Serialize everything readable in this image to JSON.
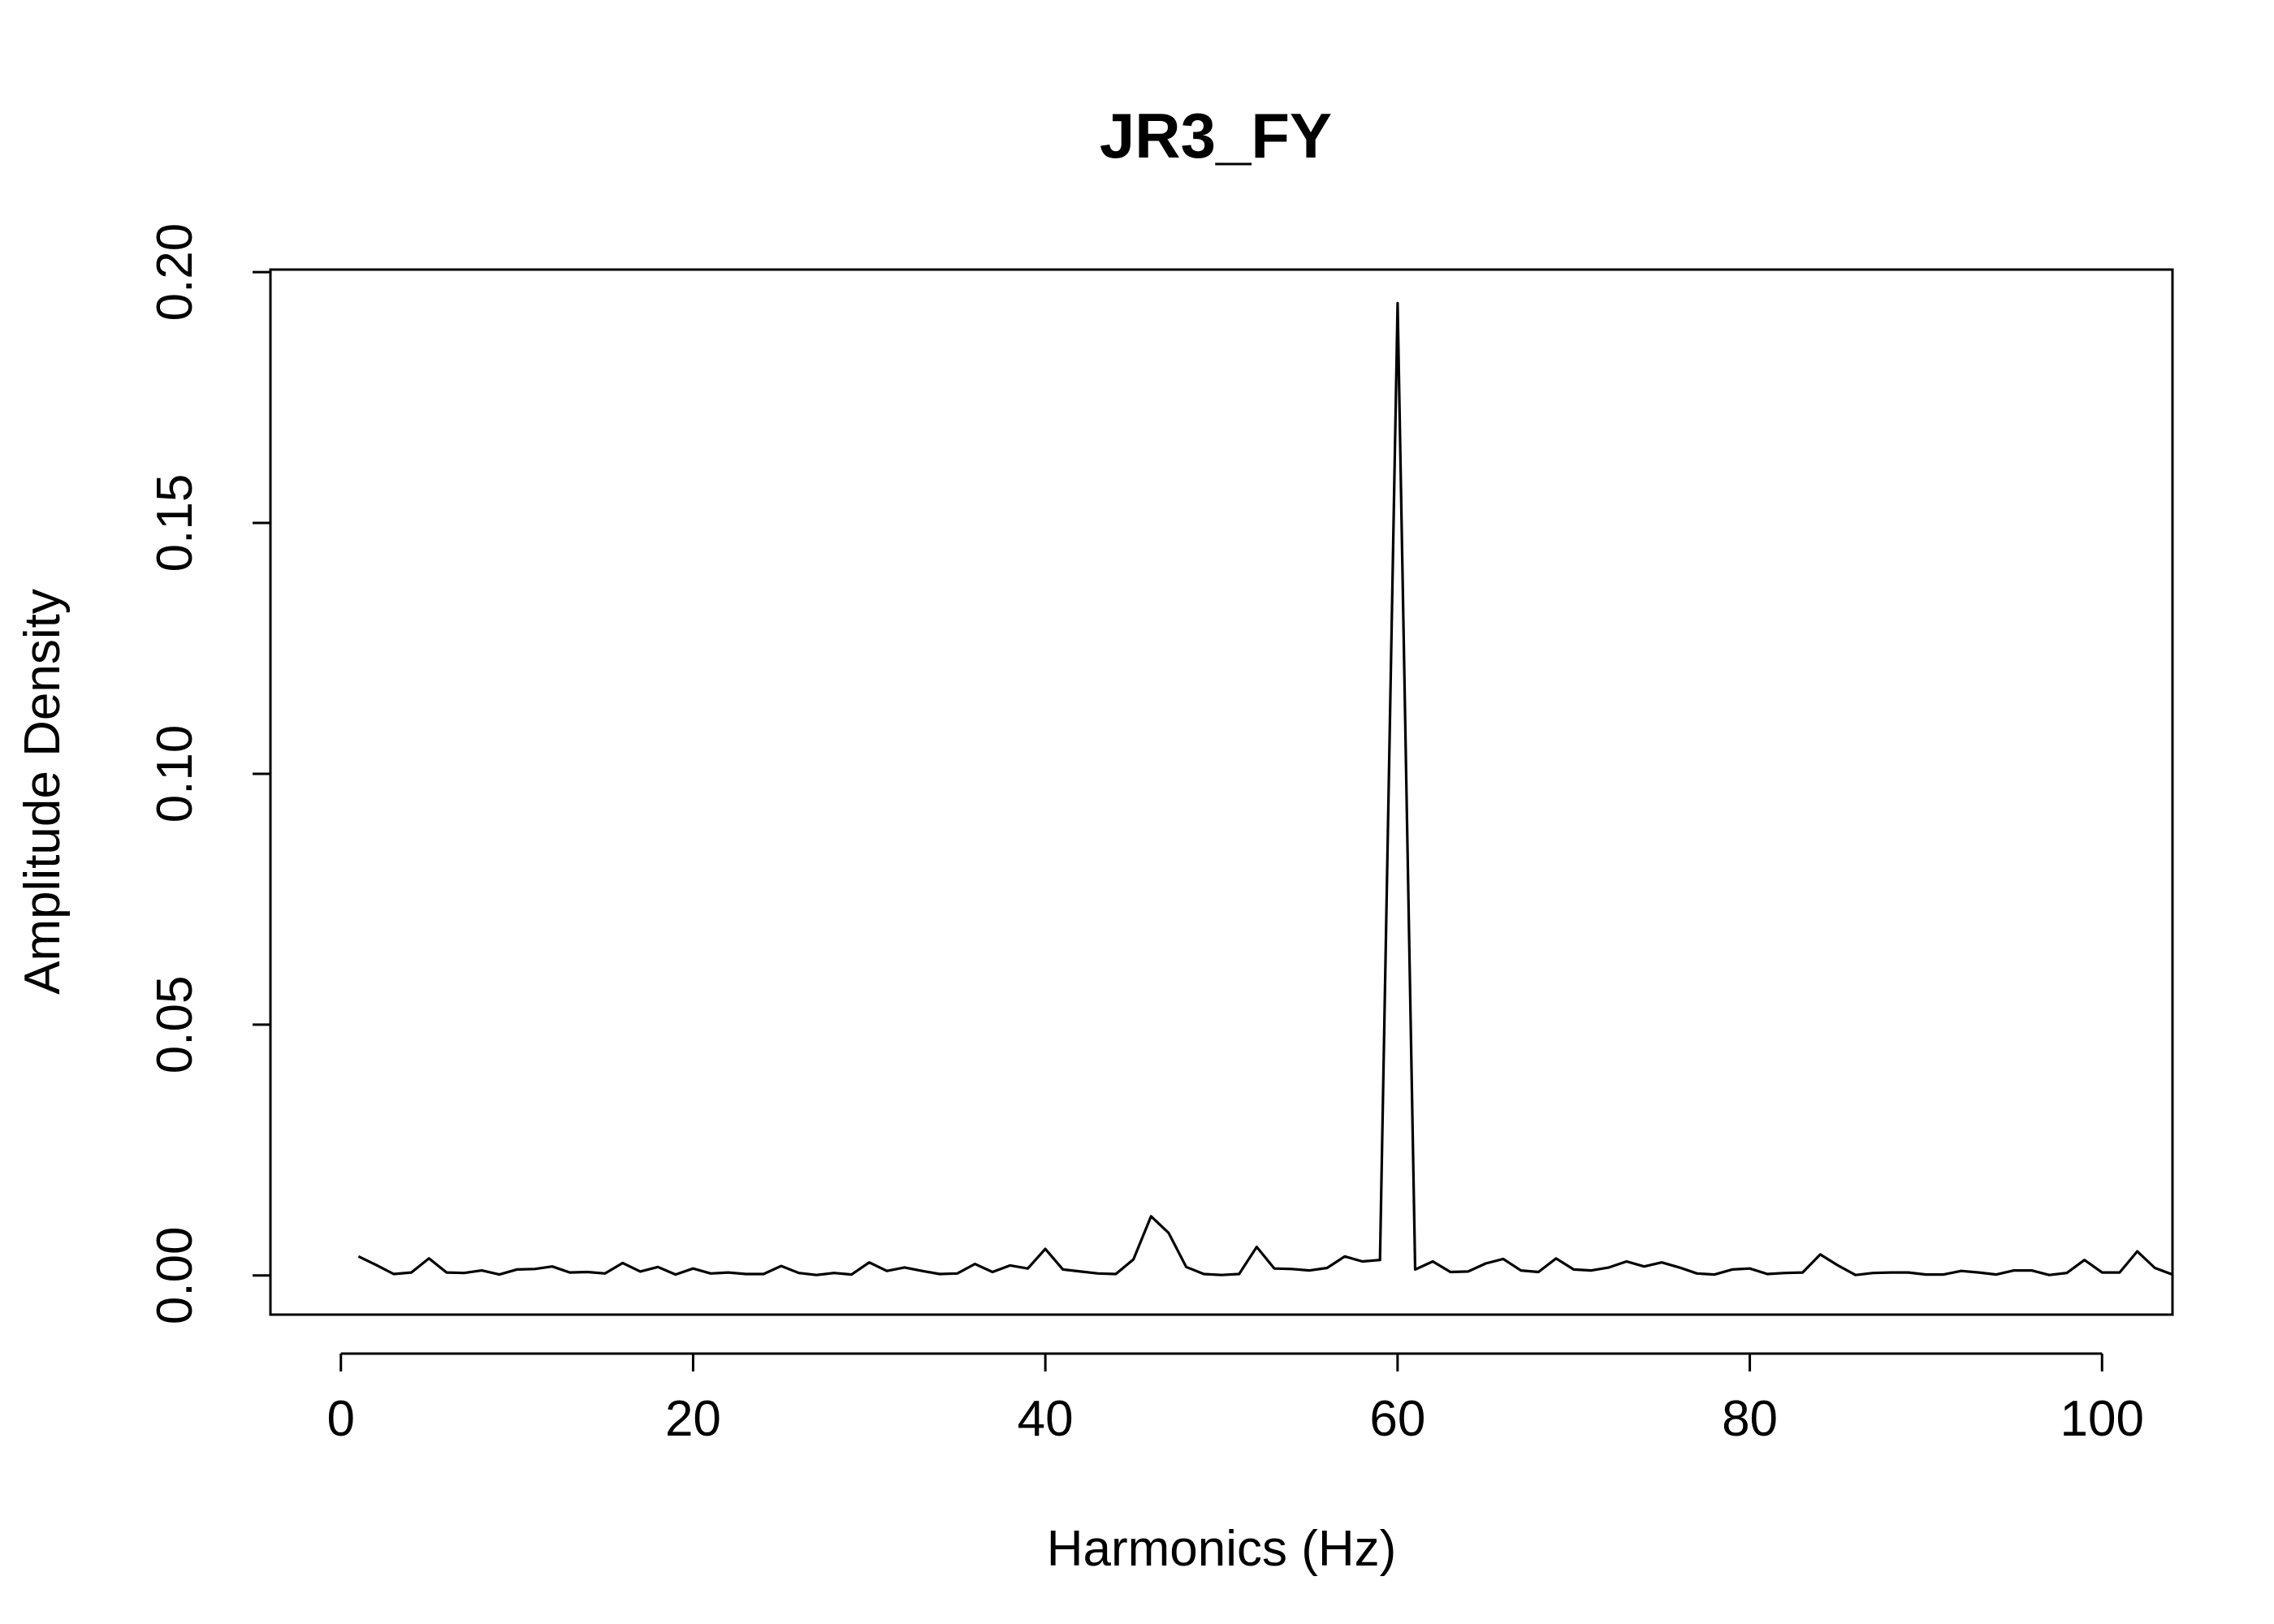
{
  "chart_data": {
    "type": "line",
    "title": "JR3_FY",
    "xlabel": "Harmonics (Hz)",
    "ylabel": "Amplitude Density",
    "xlim": [
      -4,
      104
    ],
    "ylim": [
      -0.0078,
      0.2005
    ],
    "x_ticks": [
      0,
      20,
      40,
      60,
      80,
      100
    ],
    "x_tick_labels": [
      "0",
      "20",
      "40",
      "60",
      "80",
      "100"
    ],
    "y_ticks": [
      0.0,
      0.05,
      0.1,
      0.15,
      0.2
    ],
    "y_tick_labels": [
      "0.00",
      "0.05",
      "0.10",
      "0.15",
      "0.20"
    ],
    "grid": false,
    "legend": "none",
    "series": [
      {
        "color": "#000000",
        "x": [
          1,
          2,
          3,
          4,
          5,
          6,
          7,
          8,
          9,
          10,
          11,
          12,
          13,
          14,
          15,
          16,
          17,
          18,
          19,
          20,
          21,
          22,
          23,
          24,
          25,
          26,
          27,
          28,
          29,
          30,
          31,
          32,
          33,
          34,
          35,
          36,
          37,
          38,
          39,
          40,
          41,
          42,
          43,
          44,
          45,
          46,
          47,
          48,
          49,
          50,
          51,
          52,
          53,
          54,
          55,
          56,
          57,
          58,
          59,
          60,
          61,
          62,
          63,
          64,
          65,
          66,
          67,
          68,
          69,
          70,
          71,
          72,
          73,
          74,
          75,
          76,
          77,
          78,
          79,
          80,
          81,
          82,
          83,
          84,
          85,
          86,
          87,
          88,
          89,
          90,
          91,
          92,
          93,
          94,
          95,
          96,
          97,
          98,
          99,
          100,
          101,
          102,
          103,
          104
        ],
        "y": [
          0.0038,
          0.0021,
          0.0003,
          0.0006,
          0.0034,
          0.0006,
          0.0005,
          0.001,
          0.0002,
          0.0012,
          0.0013,
          0.0018,
          0.0006,
          0.0007,
          0.0004,
          0.0025,
          0.0008,
          0.0017,
          0.0002,
          0.0014,
          0.0004,
          0.0006,
          0.0003,
          0.0003,
          0.0019,
          0.0005,
          0.0001,
          0.0005,
          0.0002,
          0.0026,
          0.0009,
          0.0016,
          0.0009,
          0.0003,
          0.0004,
          0.0023,
          0.0007,
          0.002,
          0.0014,
          0.0053,
          0.0012,
          0.0008,
          0.0004,
          0.0003,
          0.0032,
          0.0118,
          0.0085,
          0.0017,
          0.0003,
          0.0001,
          0.0003,
          0.0057,
          0.0014,
          0.0013,
          0.001,
          0.0015,
          0.0038,
          0.0028,
          0.0031,
          0.1938,
          0.0012,
          0.0028,
          0.0007,
          0.0008,
          0.0024,
          0.0033,
          0.001,
          0.0007,
          0.0034,
          0.0012,
          0.001,
          0.0016,
          0.0028,
          0.0018,
          0.0026,
          0.0016,
          0.0004,
          0.0002,
          0.0012,
          0.0014,
          0.0003,
          0.0005,
          0.0006,
          0.0042,
          0.002,
          0.0001,
          0.0005,
          0.0006,
          0.0006,
          0.0002,
          0.0002,
          0.0009,
          0.0006,
          0.0002,
          0.001,
          0.001,
          0.0001,
          0.0005,
          0.0031,
          0.0006,
          0.0006,
          0.0048,
          0.0015,
          0.0002
        ]
      }
    ]
  }
}
